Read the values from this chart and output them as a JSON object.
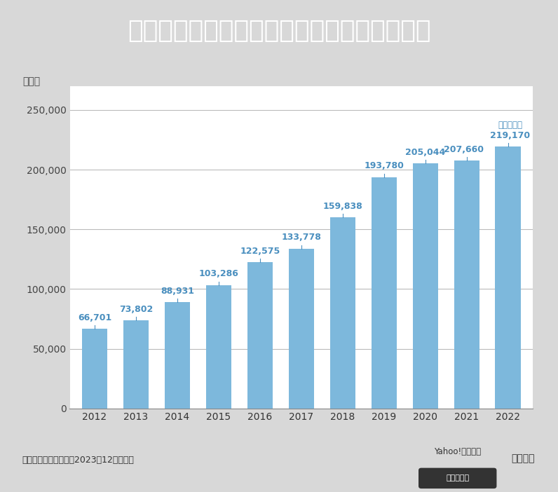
{
  "title": "児童相談所での児童虐待相談対応件数の推移",
  "years": [
    "2012",
    "2013",
    "2014",
    "2015",
    "2016",
    "2017",
    "2018",
    "2019",
    "2020",
    "2021",
    "2022"
  ],
  "values": [
    66701,
    73802,
    88931,
    103286,
    122575,
    133778,
    159838,
    193780,
    205044,
    207660,
    219170
  ],
  "bar_color": "#7DB8DC",
  "ylabel_unit": "（件）",
  "xlabel_unit": "（年度）",
  "ylim": [
    0,
    270000
  ],
  "yticks": [
    0,
    50000,
    100000,
    150000,
    200000,
    250000
  ],
  "title_bg_color": "#2B5FAD",
  "title_text_color": "#FFFFFF",
  "plot_bg_color": "#FFFFFF",
  "outer_bg_color": "#D8D8D8",
  "chart_bg_color": "#EBEBEB",
  "grid_color": "#BBBBBB",
  "value_color": "#4A8FBF",
  "source_text": "出典：こども家庭庁（2023年12月制作）",
  "yahoo_text": "Yahoo!ニュース",
  "original_text": "オリジナル",
  "last_bar_annotation": "（速報値）",
  "title_fontsize": 26,
  "label_fontsize": 10,
  "value_fontsize": 9,
  "tick_fontsize": 10,
  "ytick_fontsize": 10
}
